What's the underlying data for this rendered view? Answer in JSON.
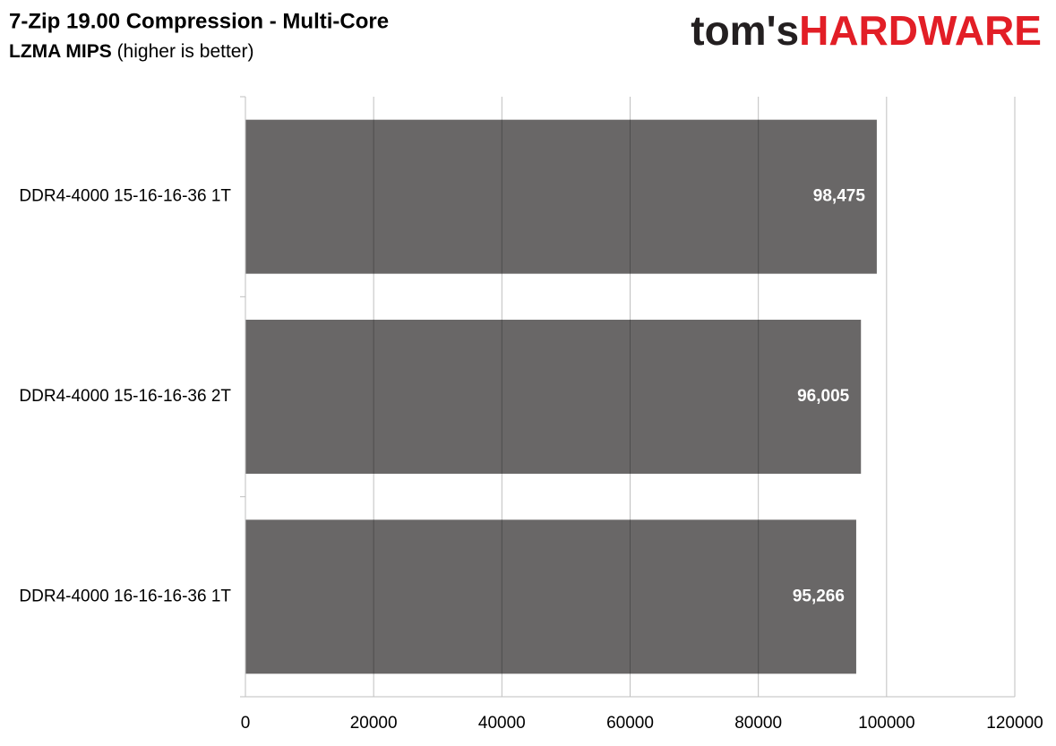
{
  "chart_data": {
    "type": "hbar",
    "title": "7-Zip 19.00 Compression - Multi-Core",
    "subtitle": "LZMA MIPS",
    "subtitle_note": "(higher is better)",
    "brand": {
      "prefix": "tom's",
      "name": "HARDWARE"
    },
    "categories": [
      "DDR4-4000 15-16-16-36 1T",
      "DDR4-4000 15-16-16-36 2T",
      "DDR4-4000 16-16-16-36 1T"
    ],
    "values": [
      98475,
      96005,
      95266
    ],
    "value_labels": [
      "98,475",
      "96,005",
      "95,266"
    ],
    "color": "#696767",
    "xlim": [
      0,
      120000
    ],
    "xticks": [
      0,
      20000,
      40000,
      60000,
      80000,
      100000,
      120000
    ],
    "grid": true
  }
}
